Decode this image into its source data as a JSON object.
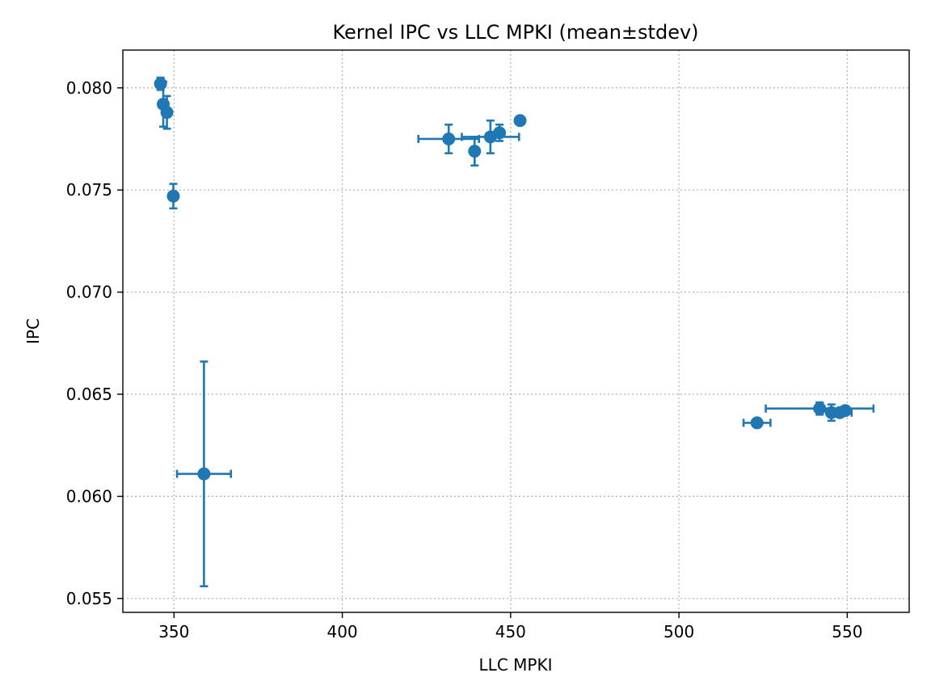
{
  "chart_data": {
    "type": "scatter",
    "title": "Kernel IPC vs LLC MPKI (mean±stdev)",
    "xlabel": "LLC MPKI",
    "ylabel": "IPC",
    "xlim": [
      334.8,
      568.4
    ],
    "ylim": [
      0.05432,
      0.08185
    ],
    "xticks": [
      350,
      400,
      450,
      500,
      550
    ],
    "xtick_labels": [
      "350",
      "400",
      "450",
      "500",
      "550"
    ],
    "yticks": [
      0.055,
      0.06,
      0.065,
      0.07,
      0.075,
      0.08
    ],
    "ytick_labels": [
      "0.055",
      "0.060",
      "0.065",
      "0.070",
      "0.075",
      "0.080"
    ],
    "grid": true,
    "color": "#1f77b4",
    "points": [
      {
        "x": 346.0,
        "y": 0.0802,
        "xerr": 0.5,
        "yerr": 0.0003
      },
      {
        "x": 346.8,
        "y": 0.0792,
        "xerr": 0.4,
        "yerr": 0.0011
      },
      {
        "x": 347.9,
        "y": 0.0788,
        "xerr": 1.0,
        "yerr": 0.0008
      },
      {
        "x": 349.8,
        "y": 0.0747,
        "xerr": 0.3,
        "yerr": 0.0006
      },
      {
        "x": 358.9,
        "y": 0.0611,
        "xerr": 8.0,
        "yerr": 0.0055
      },
      {
        "x": 431.6,
        "y": 0.0775,
        "xerr": 9.0,
        "yerr": 0.0007
      },
      {
        "x": 439.3,
        "y": 0.0769,
        "xerr": 0.5,
        "yerr": 0.0007
      },
      {
        "x": 444.0,
        "y": 0.0776,
        "xerr": 8.5,
        "yerr": 0.0008
      },
      {
        "x": 446.7,
        "y": 0.0778,
        "xerr": 0.5,
        "yerr": 0.0004
      },
      {
        "x": 452.8,
        "y": 0.0784,
        "xerr": 0.3,
        "yerr": 0.0001
      },
      {
        "x": 523.2,
        "y": 0.0636,
        "xerr": 4.0,
        "yerr": 0.0001
      },
      {
        "x": 541.8,
        "y": 0.0643,
        "xerr": 16.0,
        "yerr": 0.0003
      },
      {
        "x": 545.3,
        "y": 0.0641,
        "xerr": 0.5,
        "yerr": 0.0004
      },
      {
        "x": 547.8,
        "y": 0.0641,
        "xerr": 3.5,
        "yerr": 0.0002
      },
      {
        "x": 549.4,
        "y": 0.0642,
        "xerr": 0.5,
        "yerr": 0.0001
      }
    ]
  }
}
